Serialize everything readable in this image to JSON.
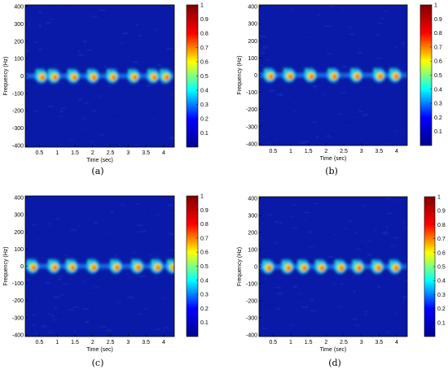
{
  "colormap": {
    "name": "jet",
    "stops": [
      "#00008f",
      "#0000ff",
      "#00ffff",
      "#ffff00",
      "#ff0000",
      "#800000"
    ]
  },
  "chart_data": [
    {
      "type": "heatmap",
      "caption": "(a)",
      "xlabel": "Time (sec)",
      "ylabel": "Frequency (Hz)",
      "xlim": [
        0.1,
        4.3
      ],
      "ylim": [
        -410,
        410
      ],
      "xticks": [
        0.5,
        1,
        1.5,
        2,
        2.5,
        3,
        3.5,
        4
      ],
      "yticks": [
        400,
        300,
        200,
        100,
        0,
        -100,
        -200,
        -300,
        -400
      ],
      "colorbar_ticks": [
        1,
        0.9,
        0.8,
        0.7,
        0.6,
        0.5,
        0.4,
        0.3,
        0.2,
        0.1
      ],
      "lines": [
        {
          "freq": 240,
          "intensity": 0.25
        },
        {
          "freq": -235,
          "intensity": 0.25
        }
      ],
      "bursts_times": [
        0.55,
        0.9,
        1.45,
        2.0,
        2.55,
        3.15,
        3.7,
        4.05
      ],
      "center_intensity": 0.85
    },
    {
      "type": "heatmap",
      "caption": "(b)",
      "xlabel": "Time (sec)",
      "ylabel": "Frequency (Hz)",
      "xlim": [
        0.1,
        4.3
      ],
      "ylim": [
        -410,
        410
      ],
      "xticks": [
        0.5,
        1,
        1.5,
        2,
        2.5,
        3,
        3.5,
        4
      ],
      "yticks": [
        400,
        300,
        200,
        100,
        0,
        -100,
        -200,
        -300,
        -400
      ],
      "colorbar_ticks": [
        1,
        0.9,
        0.8,
        0.7,
        0.6,
        0.5,
        0.4,
        0.3,
        0.2,
        0.1
      ],
      "lines": [
        {
          "freq": 275,
          "intensity": 0.2
        },
        {
          "freq": -275,
          "intensity": 0.2
        }
      ],
      "bursts_times": [
        0.4,
        0.95,
        1.55,
        2.2,
        2.85,
        3.5,
        3.95
      ],
      "center_intensity": 0.9
    },
    {
      "type": "heatmap",
      "caption": "(c)",
      "xlabel": "Time (sec)",
      "ylabel": "Frequency (Hz)",
      "xlim": [
        0.1,
        4.3
      ],
      "ylim": [
        -410,
        410
      ],
      "xticks": [
        0.5,
        1,
        1.5,
        2,
        2.5,
        3,
        3.5,
        4
      ],
      "yticks": [
        400,
        300,
        200,
        100,
        0,
        -100,
        -200,
        -300,
        -400
      ],
      "colorbar_ticks": [
        1,
        0.9,
        0.8,
        0.7,
        0.6,
        0.5,
        0.4,
        0.3,
        0.2,
        0.1
      ],
      "lines": [
        {
          "freq": 375,
          "intensity": 0.22
        },
        {
          "freq": -360,
          "intensity": 0.25
        },
        {
          "freq": -405,
          "intensity": 0.3
        }
      ],
      "bursts_times": [
        0.3,
        0.9,
        1.4,
        2.0,
        2.65,
        3.25,
        3.8,
        4.25
      ],
      "center_intensity": 0.8
    },
    {
      "type": "heatmap",
      "caption": "(d)",
      "xlabel": "Time (sec)",
      "ylabel": "Frequency (Hz)",
      "xlim": [
        0.1,
        4.3
      ],
      "ylim": [
        -410,
        410
      ],
      "xticks": [
        0.5,
        1,
        1.5,
        2,
        2.5,
        3,
        3.5,
        4
      ],
      "yticks": [
        400,
        300,
        200,
        100,
        0,
        -100,
        -200,
        -300,
        -400
      ],
      "colorbar_ticks": [
        1,
        0.9,
        0.8,
        0.7,
        0.6,
        0.5,
        0.4,
        0.3,
        0.2,
        0.1
      ],
      "lines": [
        {
          "freq": 195,
          "intensity": 0.3
        },
        {
          "freq": -190,
          "intensity": 0.28
        }
      ],
      "bursts_times": [
        0.35,
        0.9,
        1.35,
        1.85,
        2.4,
        2.9,
        3.45,
        3.95
      ],
      "center_intensity": 0.7
    }
  ]
}
